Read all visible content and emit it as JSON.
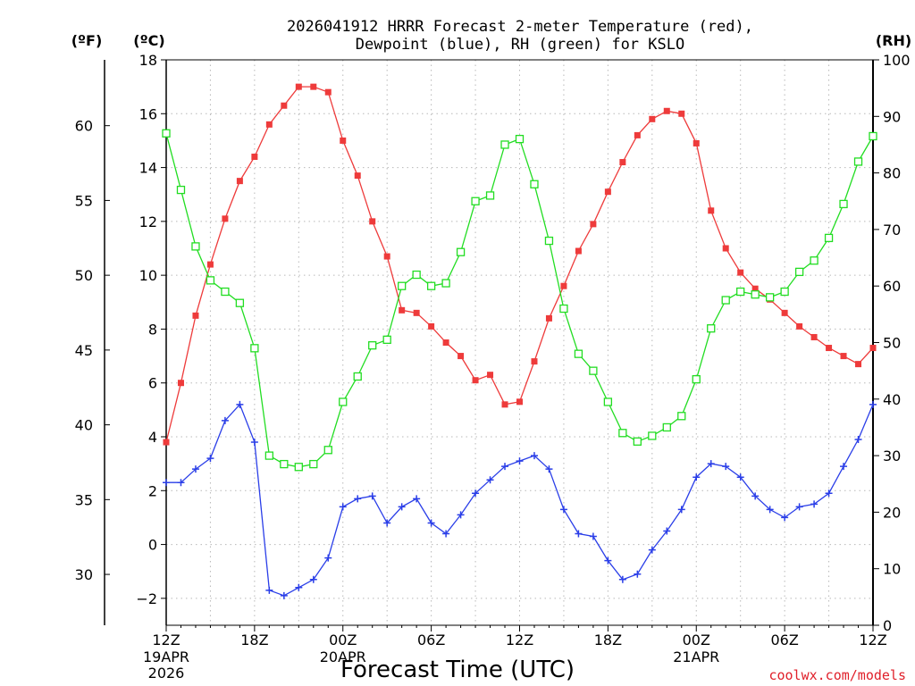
{
  "chart_data": {
    "type": "line",
    "title_line1": "2026041912 HRRR Forecast 2-meter Temperature (red),",
    "title_line2": "Dewpoint (blue), RH (green) for KSLO",
    "unit_f": "(ºF)",
    "unit_c": "(ºC)",
    "unit_rh": "(RH)",
    "xlabel": "Forecast Time (UTC)",
    "credit": "coolwx.com/models",
    "x_hours": [
      0,
      1,
      2,
      3,
      4,
      5,
      6,
      7,
      8,
      9,
      10,
      11,
      12,
      13,
      14,
      15,
      16,
      17,
      18,
      19,
      20,
      21,
      22,
      23,
      24,
      25,
      26,
      27,
      28,
      29,
      30,
      31,
      32,
      33,
      34,
      35,
      36,
      37,
      38,
      39,
      40,
      41,
      42,
      43,
      44,
      45,
      46,
      47,
      48
    ],
    "x_ticks": [
      {
        "h": 0,
        "label": "12Z",
        "sub1": "19APR",
        "sub2": "2026"
      },
      {
        "h": 6,
        "label": "18Z",
        "sub1": "",
        "sub2": ""
      },
      {
        "h": 12,
        "label": "00Z",
        "sub1": "20APR",
        "sub2": ""
      },
      {
        "h": 18,
        "label": "06Z",
        "sub1": "",
        "sub2": ""
      },
      {
        "h": 24,
        "label": "12Z",
        "sub1": "",
        "sub2": ""
      },
      {
        "h": 30,
        "label": "18Z",
        "sub1": "",
        "sub2": ""
      },
      {
        "h": 36,
        "label": "00Z",
        "sub1": "21APR",
        "sub2": ""
      },
      {
        "h": 42,
        "label": "06Z",
        "sub1": "",
        "sub2": ""
      },
      {
        "h": 48,
        "label": "12Z",
        "sub1": "",
        "sub2": ""
      }
    ],
    "xlim": [
      0,
      48
    ],
    "ylim_c": [
      -3,
      18
    ],
    "ylim_rh": [
      0,
      100
    ],
    "ylim_f": [
      26.6,
      64.4
    ],
    "yticks_c": [
      -2,
      0,
      2,
      4,
      6,
      8,
      10,
      12,
      14,
      16,
      18
    ],
    "yticks_f": [
      30,
      35,
      40,
      45,
      50,
      55,
      60
    ],
    "yticks_rh": [
      0,
      10,
      20,
      30,
      40,
      50,
      60,
      70,
      80,
      90,
      100
    ],
    "series": [
      {
        "name": "Temperature",
        "color": "#ee3b3b",
        "unit": "C",
        "marker": "filled-square",
        "values": [
          3.8,
          6.0,
          8.5,
          10.4,
          12.1,
          13.5,
          14.4,
          15.6,
          16.3,
          17.0,
          17.0,
          16.8,
          15.0,
          13.7,
          12.0,
          10.7,
          8.7,
          8.6,
          8.1,
          7.5,
          7.0,
          6.1,
          6.3,
          5.2,
          5.3,
          6.8,
          8.4,
          9.6,
          10.9,
          11.9,
          13.1,
          14.2,
          15.2,
          15.8,
          16.1,
          16.0,
          14.9,
          12.4,
          11.0,
          10.1,
          9.5,
          9.1,
          8.6,
          8.1,
          7.7,
          7.3,
          7.0,
          6.7,
          7.3
        ]
      },
      {
        "name": "Dewpoint",
        "color": "#2a3ee8",
        "unit": "C",
        "marker": "plus",
        "values": [
          2.3,
          2.3,
          2.8,
          3.2,
          4.6,
          5.2,
          3.8,
          -1.7,
          -1.9,
          -1.6,
          -1.3,
          -0.5,
          1.4,
          1.7,
          1.8,
          0.8,
          1.4,
          1.7,
          0.8,
          0.4,
          1.1,
          1.9,
          2.4,
          2.9,
          3.1,
          3.3,
          2.8,
          1.3,
          0.4,
          0.3,
          -0.6,
          -1.3,
          -1.1,
          -0.2,
          0.5,
          1.3,
          2.5,
          3.0,
          2.9,
          2.5,
          1.8,
          1.3,
          1.0,
          1.4,
          1.5,
          1.9,
          2.9,
          3.9,
          5.2
        ]
      },
      {
        "name": "RH",
        "color": "#22dd22",
        "unit": "RH",
        "marker": "open-square",
        "values": [
          87,
          77,
          67,
          61,
          59,
          57,
          49,
          30,
          28.5,
          28,
          28.5,
          31,
          39.5,
          44,
          49.5,
          50.5,
          60,
          62,
          60,
          60.5,
          66,
          75,
          76,
          85,
          86,
          78,
          68,
          56,
          48,
          45,
          39.5,
          34,
          32.5,
          33.5,
          35,
          37,
          43.5,
          52.5,
          57.5,
          59,
          58.5,
          58,
          59,
          62.5,
          64.5,
          68.5,
          74.5,
          82,
          86.5
        ]
      }
    ]
  }
}
